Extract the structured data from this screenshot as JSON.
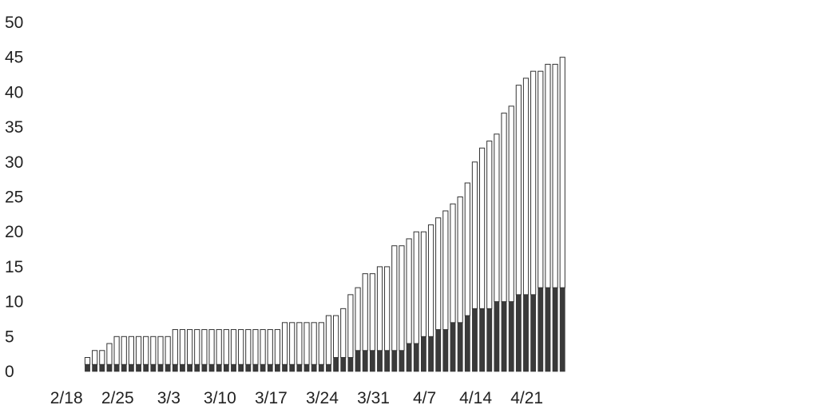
{
  "chart_data": {
    "type": "bar",
    "stacked": true,
    "grid": false,
    "legend": "none",
    "ylim": [
      0,
      50
    ],
    "y_ticks": [
      0,
      5,
      10,
      15,
      20,
      25,
      30,
      35,
      40,
      45,
      50
    ],
    "x_tick_labels": [
      "2/18",
      "2/25",
      "3/3",
      "3/10",
      "3/17",
      "3/24",
      "3/31",
      "4/7",
      "4/14",
      "4/21"
    ],
    "categories": [
      "2/20",
      "2/21",
      "2/22",
      "2/23",
      "2/24",
      "2/25",
      "2/26",
      "2/27",
      "2/28",
      "2/29",
      "3/1",
      "3/2",
      "3/3",
      "3/4",
      "3/5",
      "3/6",
      "3/7",
      "3/8",
      "3/9",
      "3/10",
      "3/11",
      "3/12",
      "3/13",
      "3/14",
      "3/15",
      "3/16",
      "3/17",
      "3/18",
      "3/19",
      "3/20",
      "3/21",
      "3/22",
      "3/23",
      "3/24",
      "3/25",
      "3/26",
      "3/27",
      "3/28",
      "3/29",
      "3/30",
      "3/31",
      "4/1",
      "4/2",
      "4/3",
      "4/4",
      "4/5",
      "4/6",
      "4/7",
      "4/8",
      "4/9",
      "4/10",
      "4/11",
      "4/12",
      "4/13",
      "4/14",
      "4/15",
      "4/16",
      "4/17",
      "4/18",
      "4/19",
      "4/20",
      "4/21",
      "4/22",
      "4/23",
      "4/24",
      "4/25"
    ],
    "series": [
      {
        "color": "#3a3a3a",
        "values": [
          1,
          1,
          1,
          1,
          1,
          1,
          1,
          1,
          1,
          1,
          1,
          1,
          1,
          1,
          1,
          1,
          1,
          1,
          1,
          1,
          1,
          1,
          1,
          1,
          1,
          1,
          1,
          1,
          1,
          1,
          1,
          1,
          1,
          1,
          2,
          2,
          2,
          3,
          3,
          3,
          3,
          3,
          3,
          3,
          4,
          4,
          5,
          5,
          6,
          6,
          7,
          7,
          8,
          9,
          9,
          9,
          10,
          10,
          10,
          11,
          11,
          11,
          12,
          12,
          12,
          12
        ]
      },
      {
        "color": "#ffffff",
        "values": [
          1,
          2,
          2,
          3,
          4,
          4,
          4,
          4,
          4,
          4,
          4,
          4,
          5,
          5,
          5,
          5,
          5,
          5,
          5,
          5,
          5,
          5,
          5,
          5,
          5,
          5,
          5,
          6,
          6,
          6,
          6,
          6,
          6,
          7,
          6,
          7,
          9,
          9,
          11,
          11,
          12,
          12,
          15,
          15,
          15,
          16,
          15,
          16,
          16,
          17,
          17,
          18,
          19,
          21,
          23,
          24,
          24,
          27,
          28,
          30,
          31,
          32,
          31,
          32,
          32,
          33
        ]
      }
    ]
  }
}
